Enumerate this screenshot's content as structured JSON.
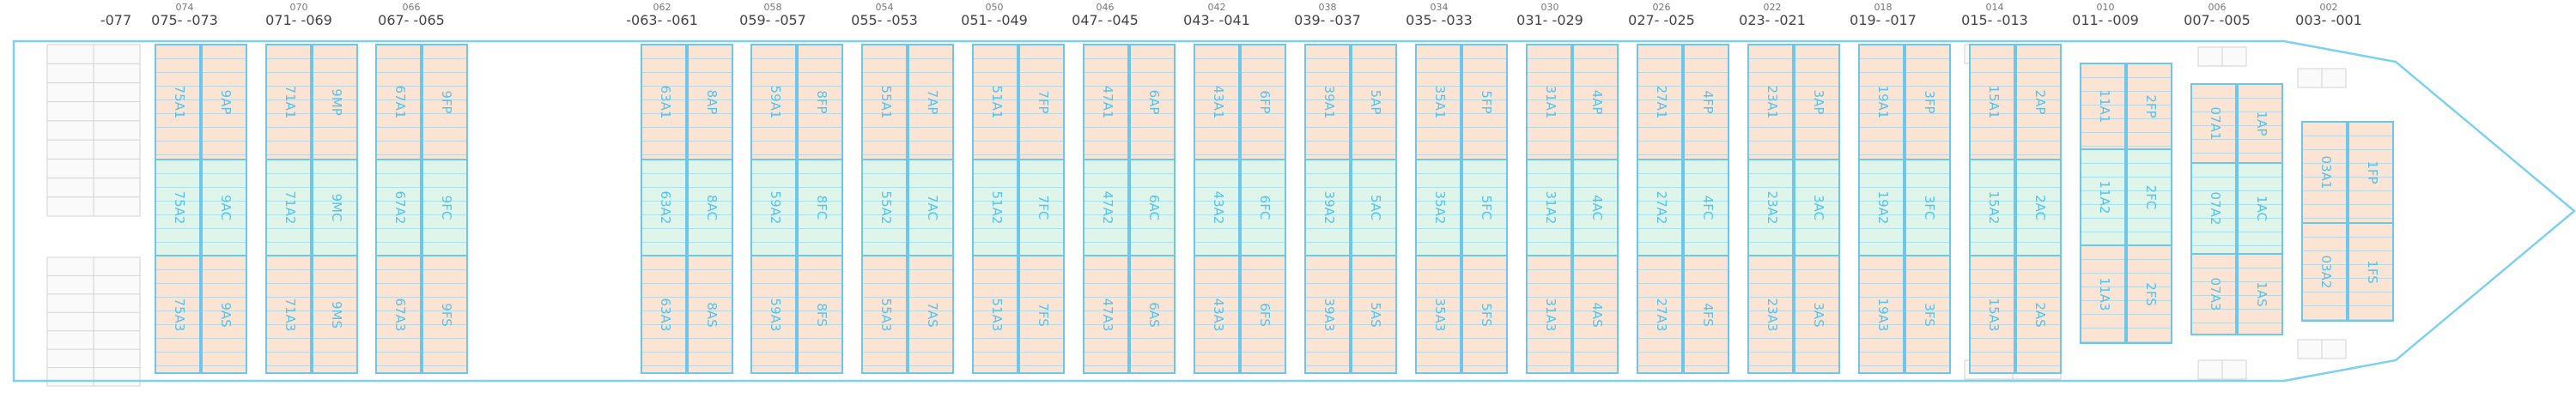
{
  "colors": {
    "hull_outline": "#7fd0f0",
    "cell_border": "#6cc7ea",
    "hold_fill": "#fbe4d4",
    "deck_fill": "#dff5ea",
    "label_text": "#56c2ec",
    "bay_text": "#444444",
    "grid_lines": "#d3d3d3"
  },
  "bays": [
    {
      "name": "aft-077",
      "label": "-077",
      "sup": ""
    },
    {
      "name": "075-073",
      "label": "075- -073",
      "sup": "074"
    },
    {
      "name": "071-069",
      "label": "071- -069",
      "sup": "070"
    },
    {
      "name": "067-065",
      "label": "067- -065",
      "sup": "066"
    },
    {
      "name": "063-061",
      "label": "-063- -061",
      "sup": "062"
    },
    {
      "name": "059-057",
      "label": "059- -057",
      "sup": "058"
    },
    {
      "name": "055-053",
      "label": "055- -053",
      "sup": "054"
    },
    {
      "name": "051-049",
      "label": "051- -049",
      "sup": "050"
    },
    {
      "name": "047-045",
      "label": "047- -045",
      "sup": "046"
    },
    {
      "name": "043-041",
      "label": "043- -041",
      "sup": "042"
    },
    {
      "name": "039-037",
      "label": "039- -037",
      "sup": "038"
    },
    {
      "name": "035-033",
      "label": "035- -033",
      "sup": "034"
    },
    {
      "name": "031-029",
      "label": "031- -029",
      "sup": "030"
    },
    {
      "name": "027-025",
      "label": "027- -025",
      "sup": "026"
    },
    {
      "name": "023-021",
      "label": "023- -021",
      "sup": "022"
    },
    {
      "name": "019-017",
      "label": "019- -017",
      "sup": "018"
    },
    {
      "name": "015-013",
      "label": "015- -013",
      "sup": "014"
    },
    {
      "name": "011-009",
      "label": "011- -009",
      "sup": "010"
    },
    {
      "name": "007-005",
      "label": "007- -005",
      "sup": "006"
    },
    {
      "name": "003-001",
      "label": "003- -001",
      "sup": "002"
    }
  ],
  "stacks": [
    {
      "name": "stack-75-9",
      "tanks": [
        [
          "75A1",
          "9AP"
        ],
        [
          "75A2",
          "9AC"
        ],
        [
          "75A3",
          "9AS"
        ]
      ]
    },
    {
      "name": "stack-71-9M",
      "tanks": [
        [
          "71A1",
          "9MP"
        ],
        [
          "71A2",
          "9MC"
        ],
        [
          "71A3",
          "9MS"
        ]
      ]
    },
    {
      "name": "stack-67-9F",
      "tanks": [
        [
          "67A1",
          "9FP"
        ],
        [
          "67A2",
          "9FC"
        ],
        [
          "67A3",
          "9FS"
        ]
      ]
    },
    {
      "name": "stack-63-8A",
      "tanks": [
        [
          "63A1",
          "8AP"
        ],
        [
          "63A2",
          "8AC"
        ],
        [
          "63A3",
          "8AS"
        ]
      ]
    },
    {
      "name": "stack-59-8F",
      "tanks": [
        [
          "59A1",
          "8FP"
        ],
        [
          "59A2",
          "8FC"
        ],
        [
          "59A3",
          "8FS"
        ]
      ]
    },
    {
      "name": "stack-55-7A",
      "tanks": [
        [
          "55A1",
          "7AP"
        ],
        [
          "55A2",
          "7AC"
        ],
        [
          "55A3",
          "7AS"
        ]
      ]
    },
    {
      "name": "stack-51-7F",
      "tanks": [
        [
          "51A1",
          "7FP"
        ],
        [
          "51A2",
          "7FC"
        ],
        [
          "51A3",
          "7FS"
        ]
      ]
    },
    {
      "name": "stack-47-6A",
      "tanks": [
        [
          "47A1",
          "6AP"
        ],
        [
          "47A2",
          "6AC"
        ],
        [
          "47A3",
          "6AS"
        ]
      ]
    },
    {
      "name": "stack-43-6F",
      "tanks": [
        [
          "43A1",
          "6FP"
        ],
        [
          "43A2",
          "6FC"
        ],
        [
          "43A3",
          "6FS"
        ]
      ]
    },
    {
      "name": "stack-39-5A",
      "tanks": [
        [
          "39A1",
          "5AP"
        ],
        [
          "39A2",
          "5AC"
        ],
        [
          "39A3",
          "5AS"
        ]
      ]
    },
    {
      "name": "stack-35-5F",
      "tanks": [
        [
          "35A1",
          "5FP"
        ],
        [
          "35A2",
          "5FC"
        ],
        [
          "35A3",
          "5FS"
        ]
      ]
    },
    {
      "name": "stack-31-4A",
      "tanks": [
        [
          "31A1",
          "4AP"
        ],
        [
          "31A2",
          "4AC"
        ],
        [
          "31A3",
          "4AS"
        ]
      ]
    },
    {
      "name": "stack-27-4F",
      "tanks": [
        [
          "27A1",
          "4FP"
        ],
        [
          "27A2",
          "4FC"
        ],
        [
          "27A3",
          "4FS"
        ]
      ]
    },
    {
      "name": "stack-23-3A",
      "tanks": [
        [
          "23A1",
          "3AP"
        ],
        [
          "23A2",
          "3AC"
        ],
        [
          "23A3",
          "3AS"
        ]
      ]
    },
    {
      "name": "stack-19-3F",
      "tanks": [
        [
          "19A1",
          "3FP"
        ],
        [
          "19A2",
          "3FC"
        ],
        [
          "19A3",
          "3FS"
        ]
      ]
    },
    {
      "name": "stack-15-2A",
      "tanks": [
        [
          "15A1",
          "2AP"
        ],
        [
          "15A2",
          "2AC"
        ],
        [
          "15A3",
          "2AS"
        ]
      ]
    },
    {
      "name": "stack-11-2F",
      "tanks": [
        [
          "11A1",
          "2FP"
        ],
        [
          "11A2",
          "2FC"
        ],
        [
          "11A3",
          "2FS"
        ]
      ]
    },
    {
      "name": "stack-07-1A",
      "tanks": [
        [
          "07A1",
          "1AP"
        ],
        [
          "07A2",
          "1AC"
        ],
        [
          "07A3",
          "1AS"
        ]
      ]
    },
    {
      "name": "stack-03-1F",
      "tanks": [
        [
          "03A1",
          "1FP"
        ],
        [
          "03A2",
          "1FS"
        ]
      ]
    }
  ]
}
